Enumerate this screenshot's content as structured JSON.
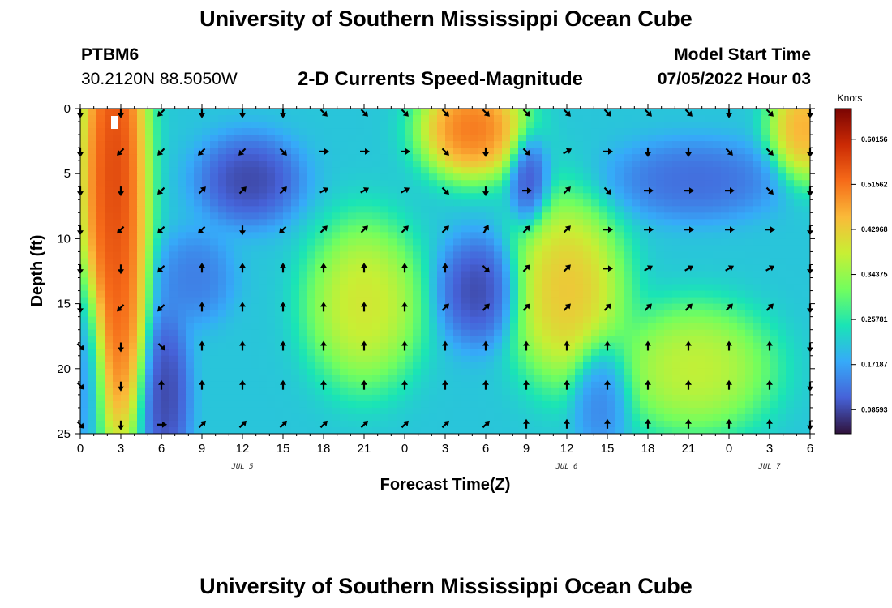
{
  "header": {
    "title": "University of Southern Mississippi Ocean Cube",
    "repeat_title": "University of Southern Mississippi Ocean Cube",
    "station_id": "PTBM6",
    "station_coords": "30.2120N  88.5050W",
    "subtitle": "2-D Currents Speed-Magnitude",
    "model_start_label": "Model Start Time",
    "model_start_value": "07/05/2022 Hour 03"
  },
  "chart_data": {
    "type": "heatmap",
    "title": "2-D Currents Speed-Magnitude",
    "xlabel": "Forecast Time(Z)",
    "ylabel": "Depth (ft)",
    "x_range_hours": [
      0,
      54
    ],
    "y_range_ft": [
      0,
      25
    ],
    "x_ticks": [
      {
        "hour": 0,
        "label": "0"
      },
      {
        "hour": 3,
        "label": "3"
      },
      {
        "hour": 6,
        "label": "6"
      },
      {
        "hour": 9,
        "label": "9"
      },
      {
        "hour": 12,
        "label": "12"
      },
      {
        "hour": 15,
        "label": "15"
      },
      {
        "hour": 18,
        "label": "18"
      },
      {
        "hour": 21,
        "label": "21"
      },
      {
        "hour": 24,
        "label": "0"
      },
      {
        "hour": 27,
        "label": "3"
      },
      {
        "hour": 30,
        "label": "6"
      },
      {
        "hour": 33,
        "label": "9"
      },
      {
        "hour": 36,
        "label": "12"
      },
      {
        "hour": 39,
        "label": "15"
      },
      {
        "hour": 42,
        "label": "18"
      },
      {
        "hour": 45,
        "label": "21"
      },
      {
        "hour": 48,
        "label": "0"
      },
      {
        "hour": 51,
        "label": "3"
      },
      {
        "hour": 54,
        "label": "6"
      }
    ],
    "y_ticks": [
      {
        "depth": 0,
        "label": "0"
      },
      {
        "depth": 5,
        "label": "5"
      },
      {
        "depth": 10,
        "label": "10"
      },
      {
        "depth": 15,
        "label": "15"
      },
      {
        "depth": 20,
        "label": "20"
      },
      {
        "depth": 25,
        "label": "25"
      }
    ],
    "day_labels": [
      {
        "hour": 12,
        "label": "JUL 5"
      },
      {
        "hour": 36,
        "label": "JUL 6"
      },
      {
        "hour": 51,
        "label": "JUL 7"
      }
    ],
    "colorbar": {
      "unit": "Knots",
      "min": 0.04,
      "max": 0.66,
      "ticks": [
        {
          "value": 0.08593,
          "label": "0.08593"
        },
        {
          "value": 0.17187,
          "label": "0.17187"
        },
        {
          "value": 0.25781,
          "label": "0.25781"
        },
        {
          "value": 0.34375,
          "label": "0.34375"
        },
        {
          "value": 0.42968,
          "label": "0.42968"
        },
        {
          "value": 0.51562,
          "label": "0.51562"
        },
        {
          "value": 0.60156,
          "label": "0.60156"
        }
      ],
      "stops": [
        "#30123b",
        "#4662d8",
        "#36aaf9",
        "#1ae4b6",
        "#72fe5e",
        "#c8ef34",
        "#faba39",
        "#f66b19",
        "#cb2a04",
        "#7a0403"
      ]
    },
    "speed_field_centers": [
      {
        "hour": 2.5,
        "depth": 5,
        "value": 0.64,
        "sx": 1.8,
        "sy": 12
      },
      {
        "hour": 2.8,
        "depth": 16,
        "value": 0.55,
        "sx": 1.4,
        "sy": 7
      },
      {
        "hour": 6.3,
        "depth": 22,
        "value": 0.06,
        "sx": 1.3,
        "sy": 5
      },
      {
        "hour": 12.5,
        "depth": 5.5,
        "value": 0.06,
        "sx": 2.8,
        "sy": 2.5
      },
      {
        "hour": 8.5,
        "depth": 13,
        "value": 0.12,
        "sx": 2.0,
        "sy": 2.5
      },
      {
        "hour": 21.0,
        "depth": 15,
        "value": 0.44,
        "sx": 3.0,
        "sy": 4.5
      },
      {
        "hour": 29.0,
        "depth": 1.5,
        "value": 0.58,
        "sx": 2.8,
        "sy": 2.8
      },
      {
        "hour": 29.5,
        "depth": 14,
        "value": 0.06,
        "sx": 2.2,
        "sy": 3.0
      },
      {
        "hour": 33.2,
        "depth": 5.5,
        "value": 0.07,
        "sx": 1.0,
        "sy": 2.5
      },
      {
        "hour": 36.0,
        "depth": 14,
        "value": 0.49,
        "sx": 3.0,
        "sy": 5.0
      },
      {
        "hour": 38.5,
        "depth": 22,
        "value": 0.12,
        "sx": 1.5,
        "sy": 3.0
      },
      {
        "hour": 45.5,
        "depth": 5.5,
        "value": 0.1,
        "sx": 4.5,
        "sy": 2.2
      },
      {
        "hour": 45.5,
        "depth": 20,
        "value": 0.42,
        "sx": 4.0,
        "sy": 3.5
      },
      {
        "hour": 53.5,
        "depth": 1.5,
        "value": 0.52,
        "sx": 1.8,
        "sy": 3.0
      },
      {
        "hour": 0.5,
        "depth": 20,
        "value": 0.14,
        "sx": 1.0,
        "sy": 5.0
      }
    ],
    "speed_background": 0.21,
    "vector_depths": [
      0.3,
      3.3,
      6.3,
      9.3,
      12.3,
      15.3,
      18.3,
      21.3,
      24.3
    ],
    "vector_hours": [
      0,
      3,
      6,
      9,
      12,
      15,
      18,
      21,
      24,
      27,
      30,
      33,
      36,
      39,
      42,
      45,
      48,
      51,
      54
    ],
    "vector_direction_deg_from_north": [
      [
        180,
        180,
        225,
        180,
        180,
        180,
        135,
        135,
        135,
        135,
        135,
        135,
        135,
        135,
        135,
        135,
        180,
        135,
        180
      ],
      [
        180,
        225,
        225,
        225,
        225,
        135,
        90,
        90,
        90,
        135,
        180,
        135,
        60,
        90,
        180,
        180,
        135,
        135,
        180
      ],
      [
        180,
        180,
        225,
        45,
        45,
        45,
        60,
        60,
        60,
        135,
        180,
        90,
        45,
        135,
        90,
        90,
        90,
        135,
        180
      ],
      [
        180,
        225,
        225,
        225,
        180,
        225,
        45,
        45,
        45,
        45,
        30,
        45,
        45,
        90,
        90,
        90,
        90,
        90,
        180
      ],
      [
        180,
        180,
        225,
        0,
        0,
        0,
        0,
        0,
        0,
        0,
        135,
        45,
        45,
        90,
        60,
        60,
        60,
        60,
        180
      ],
      [
        180,
        225,
        225,
        0,
        0,
        0,
        0,
        0,
        0,
        45,
        45,
        45,
        45,
        45,
        45,
        45,
        45,
        45,
        180
      ],
      [
        135,
        180,
        135,
        0,
        0,
        0,
        0,
        0,
        0,
        0,
        0,
        0,
        0,
        0,
        0,
        0,
        0,
        0,
        180
      ],
      [
        135,
        180,
        0,
        0,
        0,
        0,
        0,
        0,
        0,
        0,
        0,
        0,
        0,
        0,
        0,
        0,
        0,
        0,
        180
      ],
      [
        135,
        180,
        90,
        45,
        45,
        45,
        45,
        45,
        45,
        45,
        45,
        0,
        0,
        0,
        0,
        0,
        0,
        0,
        180
      ]
    ]
  }
}
